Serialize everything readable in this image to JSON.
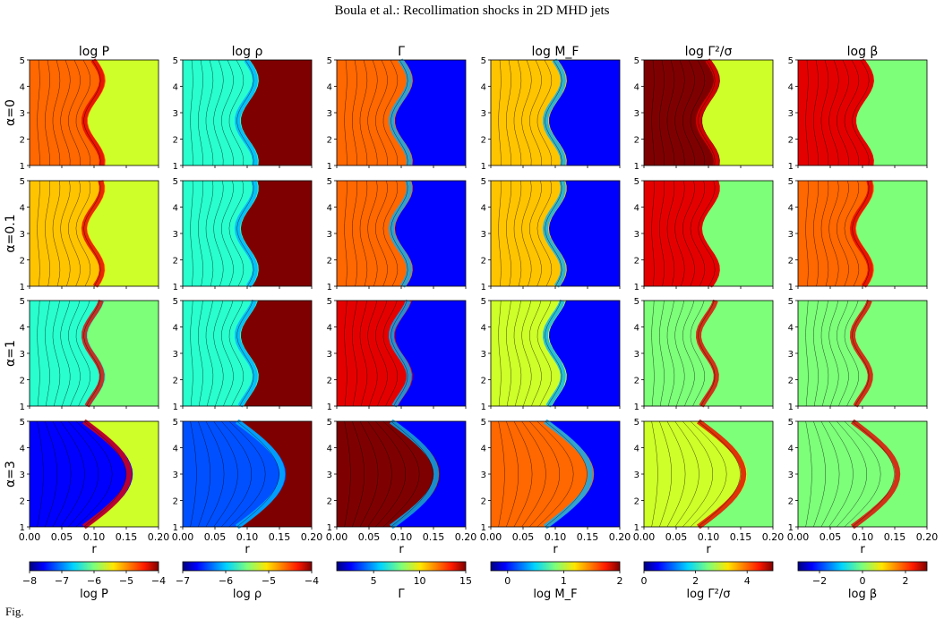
{
  "header": "Boula et al.: Recollimation shocks in 2D MHD jets",
  "column_titles": [
    "log P",
    "log ρ",
    "Γ",
    "log M_F",
    "log Γ²/σ",
    "log β"
  ],
  "row_labels": [
    "α=0",
    "α=0.1",
    "α=1",
    "α=3"
  ],
  "y_ticks": [
    "1",
    "2",
    "3",
    "4",
    "5"
  ],
  "x_ticks": [
    "0.00",
    "0.05",
    "0.10",
    "0.15",
    "0.20"
  ],
  "x_axis_label": "r",
  "colorbars": [
    {
      "label": "log P",
      "ticks": [
        {
          "v": -8,
          "t": "−8"
        },
        {
          "v": -7,
          "t": "−7"
        },
        {
          "v": -6,
          "t": "−6"
        },
        {
          "v": -5,
          "t": "−5"
        },
        {
          "v": -4,
          "t": "−4"
        }
      ],
      "min": -8,
      "max": -4
    },
    {
      "label": "log ρ",
      "ticks": [
        {
          "v": -7,
          "t": "−7"
        },
        {
          "v": -6,
          "t": "−6"
        },
        {
          "v": -5,
          "t": "−5"
        },
        {
          "v": -4,
          "t": "−4"
        }
      ],
      "min": -7,
      "max": -4
    },
    {
      "label": "Γ",
      "ticks": [
        {
          "v": 5,
          "t": "5"
        },
        {
          "v": 10,
          "t": "10"
        },
        {
          "v": 15,
          "t": "15"
        }
      ],
      "min": 1,
      "max": 15
    },
    {
      "label": "log M_F",
      "ticks": [
        {
          "v": 0,
          "t": "0"
        },
        {
          "v": 1,
          "t": "1"
        },
        {
          "v": 2,
          "t": "2"
        }
      ],
      "min": -0.3,
      "max": 2
    },
    {
      "label": "log Γ²/σ",
      "ticks": [
        {
          "v": 0,
          "t": "0"
        },
        {
          "v": 2,
          "t": "2"
        },
        {
          "v": 4,
          "t": "4"
        }
      ],
      "min": 0,
      "max": 5
    },
    {
      "label": "log β",
      "ticks": [
        {
          "v": -2,
          "t": "−2"
        },
        {
          "v": 0,
          "t": "0"
        },
        {
          "v": 2,
          "t": "2"
        }
      ],
      "min": -3,
      "max": 3
    }
  ],
  "caption_fragment": "Fig."
}
